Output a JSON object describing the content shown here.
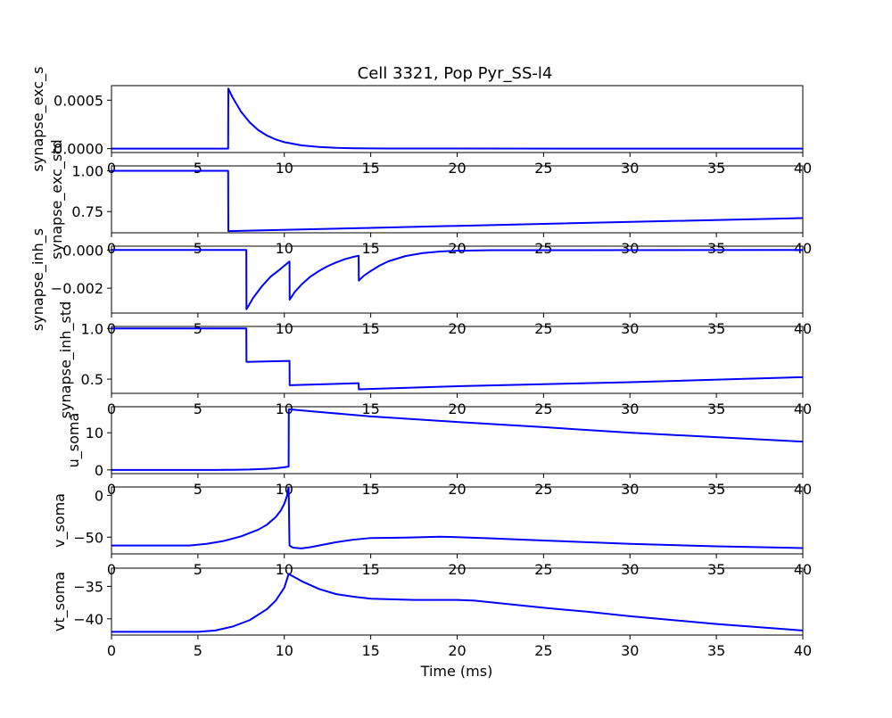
{
  "figure": {
    "title": "Cell 3321, Pop Pyr_SS-l4",
    "xlabel": "Time (ms)"
  },
  "chart_data": [
    {
      "type": "line",
      "ylabel": "synapse_exc_s",
      "xlim": [
        0,
        40
      ],
      "ylim": [
        -4e-05,
        0.00065
      ],
      "x_ticks": [
        "0",
        "5",
        "10",
        "15",
        "20",
        "25",
        "30",
        "35",
        "40"
      ],
      "y_ticks": [
        {
          "value": 0.0005,
          "label": "0.0005"
        },
        {
          "value": 0,
          "label": "0.0000"
        }
      ],
      "series": [
        {
          "color": "#0000ff",
          "x": [
            0,
            6.75,
            6.76,
            7.0,
            7.5,
            8.0,
            8.5,
            9.0,
            9.5,
            10.0,
            11.0,
            12.0,
            13.0,
            14.0,
            16.0,
            40
          ],
          "y": [
            0,
            0,
            0.00062,
            0.00053,
            0.00038,
            0.00027,
            0.00019,
            0.000135,
            9.5e-05,
            6.7e-05,
            3.4e-05,
            1.7e-05,
            8.5e-06,
            4e-06,
            1e-06,
            0
          ]
        }
      ]
    },
    {
      "type": "line",
      "ylabel": "synapse_exc_std",
      "xlim": [
        0,
        40
      ],
      "ylim": [
        0.62,
        1.03
      ],
      "x_ticks": [
        "0",
        "5",
        "10",
        "15",
        "20",
        "25",
        "30",
        "35",
        "40"
      ],
      "y_ticks": [
        {
          "value": 1.0,
          "label": "1.00"
        },
        {
          "value": 0.75,
          "label": "0.75"
        }
      ],
      "series": [
        {
          "color": "#0000ff",
          "x": [
            0,
            6.75,
            6.76,
            15,
            25,
            40
          ],
          "y": [
            1.0,
            1.0,
            0.63,
            0.65,
            0.675,
            0.71
          ]
        }
      ]
    },
    {
      "type": "line",
      "ylabel": "synapse_inh_s",
      "xlim": [
        0,
        40
      ],
      "ylim": [
        -0.0033,
        0.0002
      ],
      "x_ticks": [
        "0",
        "5",
        "10",
        "15",
        "20",
        "25",
        "30",
        "35",
        "40"
      ],
      "y_ticks": [
        {
          "value": 0,
          "label": "0.000"
        },
        {
          "value": -0.002,
          "label": "−0.002"
        }
      ],
      "series": [
        {
          "color": "#0000ff",
          "x": [
            0,
            7.8,
            7.81,
            8.2,
            8.7,
            9.2,
            9.7,
            10.3,
            10.31,
            10.6,
            11.0,
            11.5,
            12.0,
            12.5,
            13.0,
            13.5,
            14.0,
            14.3,
            14.31,
            14.6,
            15.0,
            15.5,
            16.0,
            17.0,
            18.0,
            19.0,
            20.0,
            22.0,
            40
          ],
          "y": [
            0,
            0,
            -0.0031,
            -0.0025,
            -0.0019,
            -0.0014,
            -0.00105,
            -0.0006,
            -0.0026,
            -0.0022,
            -0.0018,
            -0.0014,
            -0.0011,
            -0.00085,
            -0.00065,
            -0.00048,
            -0.00036,
            -0.0003,
            -0.0016,
            -0.00135,
            -0.0011,
            -0.00082,
            -0.0006,
            -0.00032,
            -0.00016,
            -8e-05,
            -4e-05,
            -1e-05,
            0
          ]
        }
      ]
    },
    {
      "type": "line",
      "ylabel": "synapse_inh_std",
      "xlim": [
        0,
        40
      ],
      "ylim": [
        0.36,
        1.02
      ],
      "x_ticks": [
        "0",
        "5",
        "10",
        "15",
        "20",
        "25",
        "30",
        "35",
        "40"
      ],
      "y_ticks": [
        {
          "value": 1.0,
          "label": "1.0"
        },
        {
          "value": 0.5,
          "label": "0.5"
        }
      ],
      "series": [
        {
          "color": "#0000ff",
          "x": [
            0,
            7.8,
            7.81,
            10.3,
            10.31,
            14.3,
            14.31,
            20,
            30,
            40
          ],
          "y": [
            1.0,
            1.0,
            0.67,
            0.68,
            0.44,
            0.46,
            0.4,
            0.43,
            0.47,
            0.52
          ]
        }
      ]
    },
    {
      "type": "line",
      "ylabel": "u_soma",
      "xlim": [
        0,
        40
      ],
      "ylim": [
        -1,
        17
      ],
      "x_ticks": [
        "0",
        "5",
        "10",
        "15",
        "20",
        "25",
        "30",
        "35",
        "40"
      ],
      "y_ticks": [
        {
          "value": 10,
          "label": "10"
        },
        {
          "value": 0,
          "label": "0"
        }
      ],
      "series": [
        {
          "color": "#0000ff",
          "x": [
            0,
            6.0,
            7.0,
            8.0,
            9.0,
            9.5,
            10.0,
            10.25,
            10.26,
            12.0,
            15.0,
            20.0,
            25.0,
            30.0,
            35.0,
            40.0
          ],
          "y": [
            0,
            0,
            0.02,
            0.1,
            0.3,
            0.45,
            0.7,
            0.9,
            16.3,
            15.6,
            14.4,
            12.9,
            11.5,
            10.0,
            8.8,
            7.6
          ]
        }
      ]
    },
    {
      "type": "line",
      "ylabel": "v_soma",
      "xlim": [
        0,
        40
      ],
      "ylim": [
        -70,
        10
      ],
      "x_ticks": [
        "0",
        "5",
        "10",
        "15",
        "20",
        "25",
        "30",
        "35",
        "40"
      ],
      "y_ticks": [
        {
          "value": 0,
          "label": "0"
        },
        {
          "value": -50,
          "label": "−50"
        }
      ],
      "series": [
        {
          "color": "#0000ff",
          "x": [
            0,
            4.5,
            5.5,
            6.5,
            7.5,
            8.5,
            9.0,
            9.5,
            9.8,
            10.0,
            10.15,
            10.25,
            10.3,
            10.5,
            11.0,
            11.5,
            12.0,
            13.0,
            14.0,
            15.0,
            17.0,
            19.0,
            20.0,
            22.0,
            25.0,
            30.0,
            35.0,
            40.0
          ],
          "y": [
            -60,
            -60,
            -58,
            -54.5,
            -49,
            -41,
            -35,
            -26,
            -18,
            -10,
            -1,
            10,
            -60,
            -62.5,
            -63.5,
            -62,
            -60,
            -56,
            -53,
            -51,
            -50.5,
            -49.5,
            -50,
            -51.5,
            -54,
            -58,
            -61,
            -63
          ]
        }
      ]
    },
    {
      "type": "line",
      "ylabel": "vt_soma",
      "xlim": [
        0,
        40
      ],
      "ylim": [
        -42.5,
        -32.2
      ],
      "x_ticks": [
        "0",
        "5",
        "10",
        "15",
        "20",
        "25",
        "30",
        "35",
        "40"
      ],
      "y_ticks": [
        {
          "value": -35,
          "label": "−35"
        },
        {
          "value": -40,
          "label": "−40"
        }
      ],
      "series": [
        {
          "color": "#0000ff",
          "x": [
            0,
            5.0,
            6.0,
            7.0,
            8.0,
            9.0,
            9.5,
            10.0,
            10.25,
            11.0,
            12.0,
            13.0,
            14.0,
            15.0,
            17.5,
            20.0,
            21.0,
            22.5,
            25.0,
            27.5,
            30.0,
            32.5,
            35.0,
            37.5,
            40.0
          ],
          "y": [
            -42,
            -42,
            -41.8,
            -41.2,
            -40.2,
            -38.5,
            -37.2,
            -35.2,
            -33.1,
            -34.2,
            -35.4,
            -36.2,
            -36.6,
            -36.9,
            -37.1,
            -37.1,
            -37.2,
            -37.6,
            -38.3,
            -38.9,
            -39.6,
            -40.2,
            -40.8,
            -41.3,
            -41.8
          ]
        }
      ]
    }
  ]
}
